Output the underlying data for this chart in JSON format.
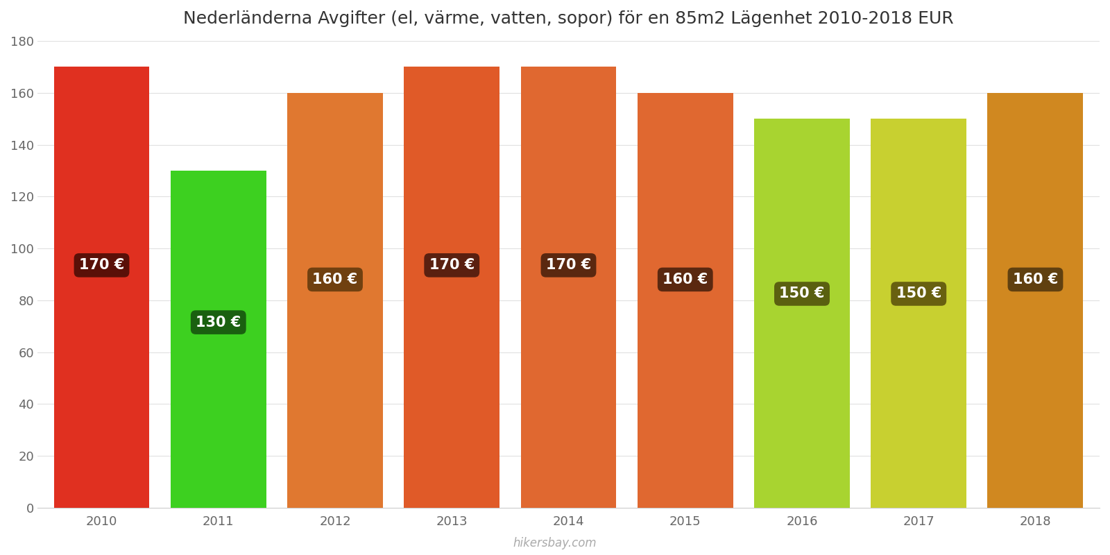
{
  "title": "Nederländerna Avgifter (el, värme, vatten, sopor) för en 85m2 Lägenhet 2010-2018 EUR",
  "years": [
    2010,
    2011,
    2012,
    2013,
    2014,
    2015,
    2016,
    2017,
    2018
  ],
  "values": [
    170,
    130,
    160,
    170,
    170,
    160,
    150,
    150,
    160
  ],
  "bar_colors": [
    "#e03020",
    "#3dd020",
    "#e07830",
    "#e05a28",
    "#e06830",
    "#e06830",
    "#a8d430",
    "#c8d030",
    "#d08820"
  ],
  "label_bg_colors": [
    "#5a1008",
    "#1a6010",
    "#704010",
    "#5a2010",
    "#5a2810",
    "#5a2810",
    "#5a6010",
    "#686010",
    "#604010"
  ],
  "ylim": [
    0,
    180
  ],
  "yticks": [
    0,
    20,
    40,
    60,
    80,
    100,
    120,
    140,
    160,
    180
  ],
  "background_color": "#ffffff",
  "watermark": "hikersbay.com",
  "title_fontsize": 18,
  "label_fontsize": 15,
  "tick_fontsize": 13
}
